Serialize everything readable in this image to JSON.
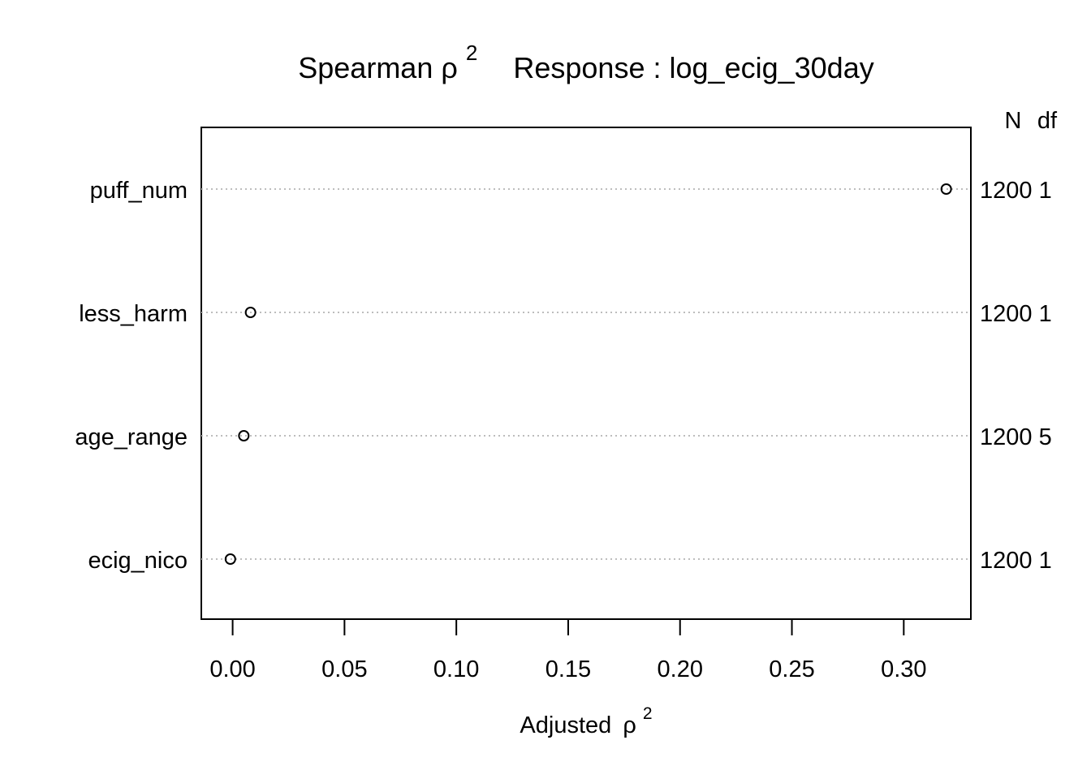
{
  "chart_data": {
    "type": "scatter",
    "title_prefix": "Spearman",
    "title_symbol": "ρ",
    "title_superscript": "2",
    "title_response_label": "Response",
    "title_colon": ":",
    "title_response": "log_ecig_30day",
    "xlabel_prefix": "Adjusted",
    "xlabel_symbol": "ρ",
    "xlabel_superscript": "2",
    "xlim": [
      -0.014,
      0.33
    ],
    "x_ticks": [
      0.0,
      0.05,
      0.1,
      0.15,
      0.2,
      0.25,
      0.3
    ],
    "x_tick_labels": [
      "0.00",
      "0.05",
      "0.10",
      "0.15",
      "0.20",
      "0.25",
      "0.30"
    ],
    "right_header_n": "N",
    "right_header_df": "df",
    "grid": "dotted horizontal lines at each variable",
    "points": [
      {
        "label": "puff_num",
        "value": 0.319,
        "n": "1200",
        "df": "1"
      },
      {
        "label": "less_harm",
        "value": 0.008,
        "n": "1200",
        "df": "1"
      },
      {
        "label": "age_range",
        "value": 0.005,
        "n": "1200",
        "df": "5"
      },
      {
        "label": "ecig_nico",
        "value": -0.001,
        "n": "1200",
        "df": "1"
      }
    ]
  }
}
